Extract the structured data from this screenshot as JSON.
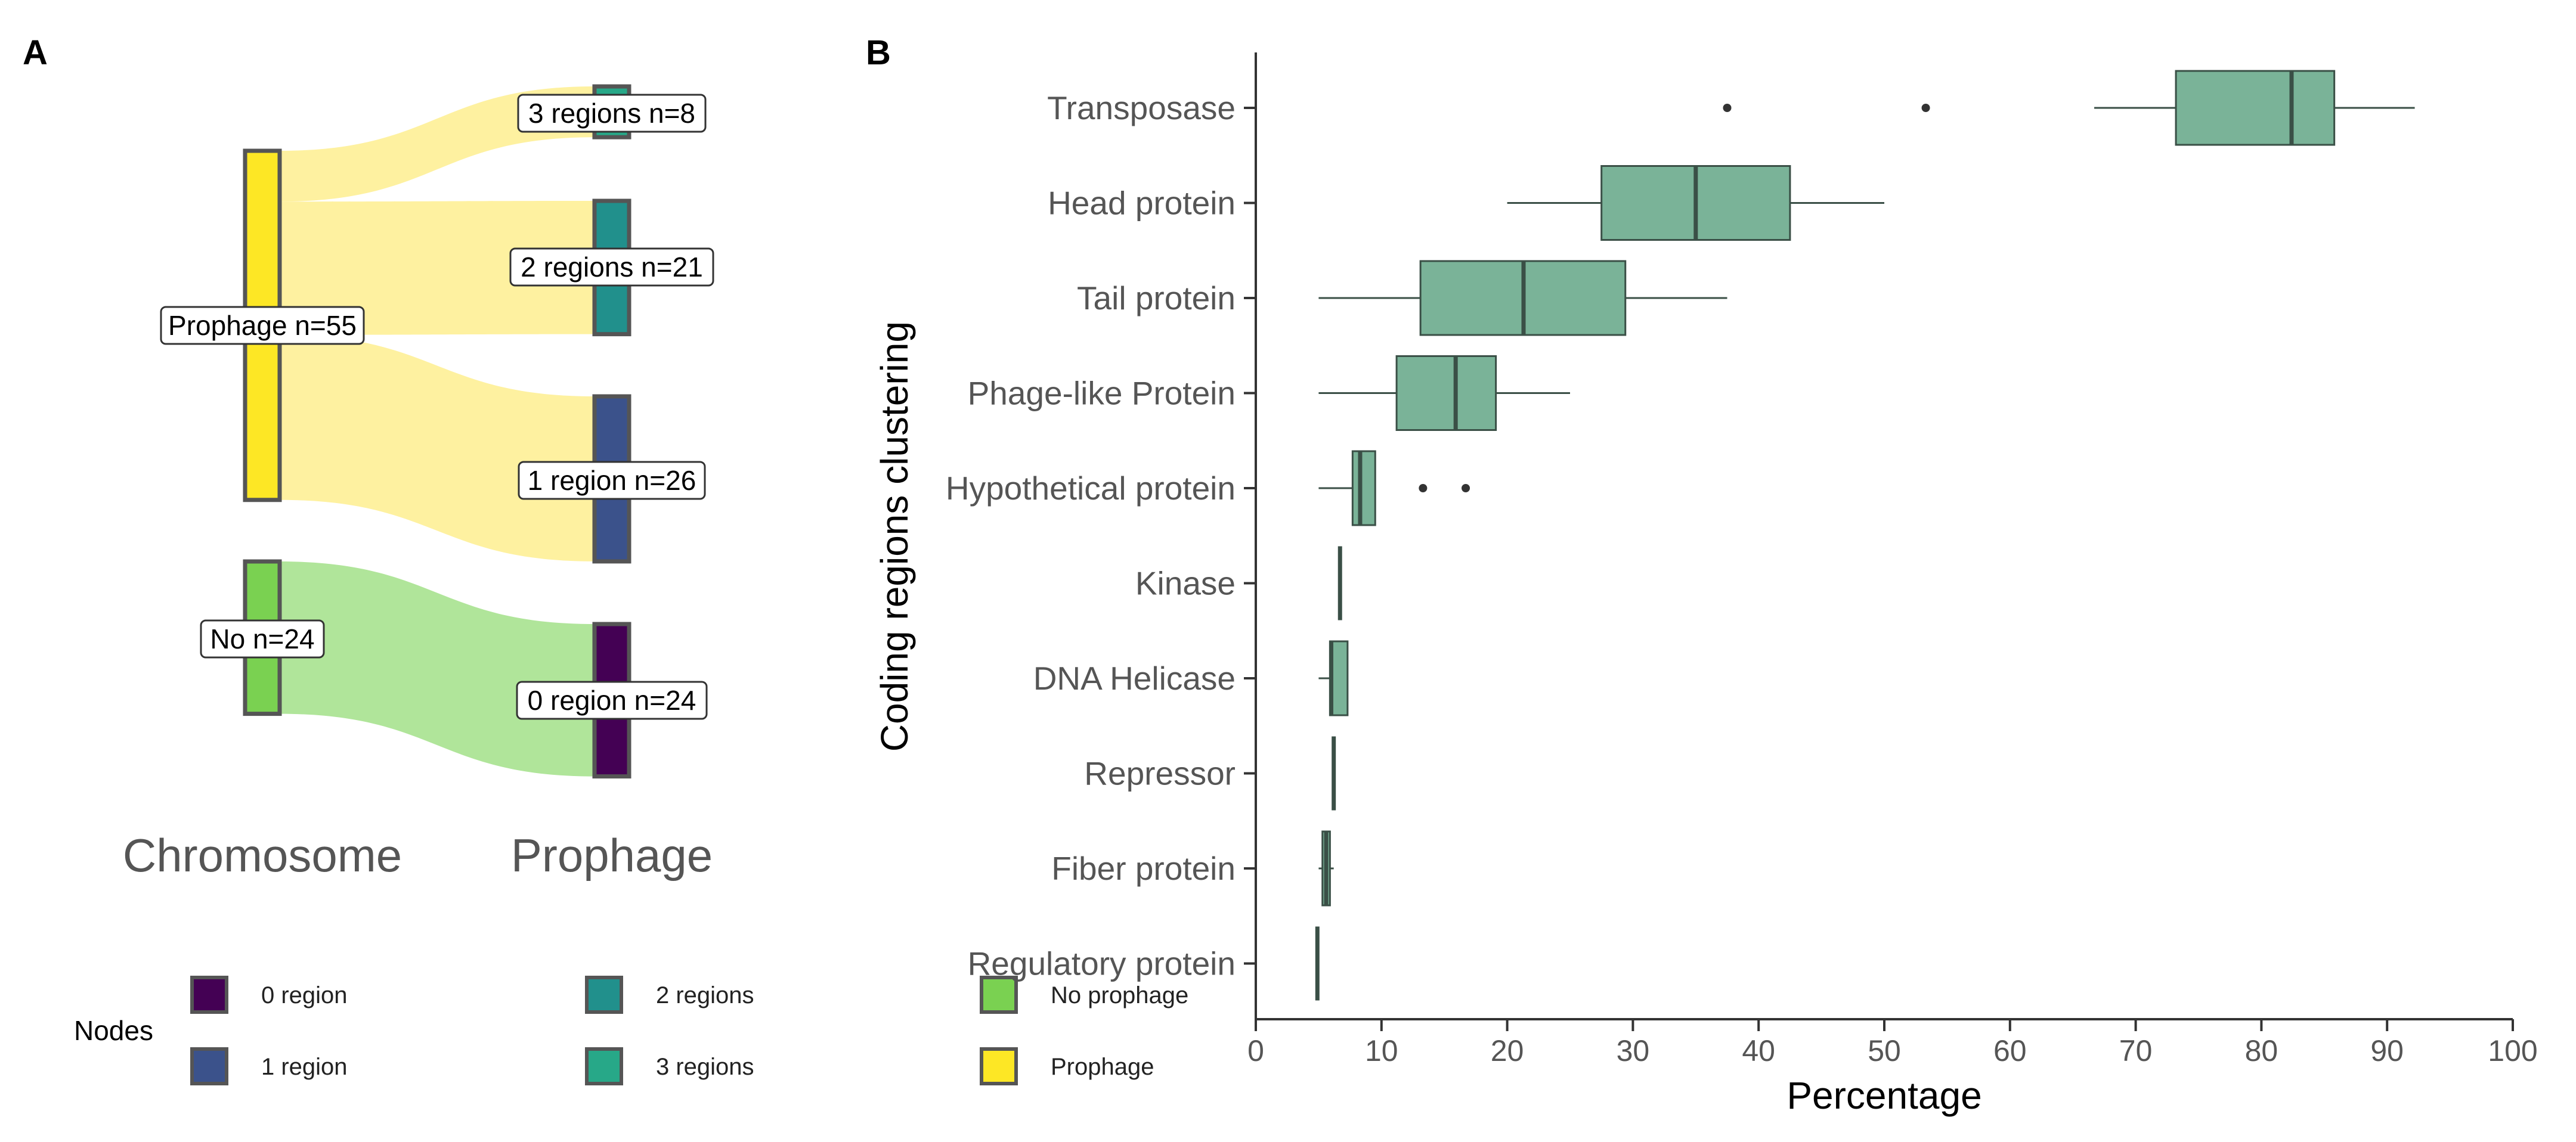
{
  "panels": {
    "a_letter": "A",
    "b_letter": "B"
  },
  "colors": {
    "0 region": "#440154",
    "1 region": "#3b528b",
    "2 regions": "#21908c",
    "3 regions": "#27a888",
    "No prophage": "#7ad151",
    "Prophage": "#fde725",
    "flow_prophage": "#fef1a0",
    "flow_no": "#b0e59a",
    "box_fill": "#7ab398",
    "box_stroke": "#3a4f46",
    "node_stroke": "#555555"
  },
  "chart_data": [
    {
      "type": "sankey",
      "columns": [
        "Chromosome",
        "Prophage"
      ],
      "nodes": [
        {
          "id": "prophage",
          "column": 0,
          "label": "Prophage n=55",
          "value": 55,
          "color_key": "Prophage"
        },
        {
          "id": "no",
          "column": 0,
          "label": "No n=24",
          "value": 24,
          "color_key": "No prophage"
        },
        {
          "id": "r3",
          "column": 1,
          "label": "3 regions n=8",
          "value": 8,
          "color_key": "3 regions"
        },
        {
          "id": "r2",
          "column": 1,
          "label": "2 regions n=21",
          "value": 21,
          "color_key": "2 regions"
        },
        {
          "id": "r1",
          "column": 1,
          "label": "1 region n=26",
          "value": 26,
          "color_key": "1 region"
        },
        {
          "id": "r0",
          "column": 1,
          "label": "0 region n=24",
          "value": 24,
          "color_key": "0 region"
        }
      ],
      "links": [
        {
          "source": "prophage",
          "target": "r3",
          "value": 8
        },
        {
          "source": "prophage",
          "target": "r2",
          "value": 21
        },
        {
          "source": "prophage",
          "target": "r1",
          "value": 26
        },
        {
          "source": "no",
          "target": "r0",
          "value": 24
        }
      ],
      "legend": {
        "title": "Nodes",
        "placement": "bottom",
        "items": [
          "0 region",
          "1 region",
          "2 regions",
          "3 regions",
          "No prophage",
          "Prophage"
        ]
      }
    },
    {
      "type": "boxplot",
      "orientation": "horizontal",
      "xlabel": "Percentage",
      "ylabel": "Coding regions clustering",
      "xlim": [
        0,
        100
      ],
      "xticks": [
        0,
        10,
        20,
        30,
        40,
        50,
        60,
        70,
        80,
        90,
        100
      ],
      "grid": false,
      "categories": [
        "Transposase",
        "Head protein",
        "Tail protein",
        "Phage-like Protein",
        "Hypothetical protein",
        "Kinase",
        "DNA Helicase",
        "Repressor",
        "Fiber protein",
        "Regulatory protein"
      ],
      "boxes": [
        {
          "category": "Transposase",
          "whisker_low": 66.7,
          "q1": 73.2,
          "median": 82.4,
          "q3": 85.8,
          "whisker_high": 92.2,
          "outliers": [
            37.5,
            53.3
          ]
        },
        {
          "category": "Head protein",
          "whisker_low": 20.0,
          "q1": 27.5,
          "median": 35.0,
          "q3": 42.5,
          "whisker_high": 50.0,
          "outliers": []
        },
        {
          "category": "Tail protein",
          "whisker_low": 5.0,
          "q1": 13.1,
          "median": 21.3,
          "q3": 29.4,
          "whisker_high": 37.5,
          "outliers": []
        },
        {
          "category": "Phage-like Protein",
          "whisker_low": 5.0,
          "q1": 11.2,
          "median": 15.9,
          "q3": 19.1,
          "whisker_high": 25.0,
          "outliers": []
        },
        {
          "category": "Hypothetical protein",
          "whisker_low": 5.0,
          "q1": 7.7,
          "median": 8.3,
          "q3": 9.5,
          "whisker_high": 9.5,
          "outliers": [
            13.3,
            16.7
          ]
        },
        {
          "category": "Kinase",
          "whisker_low": 6.7,
          "q1": 6.7,
          "median": 6.7,
          "q3": 6.7,
          "whisker_high": 6.7,
          "outliers": []
        },
        {
          "category": "DNA Helicase",
          "whisker_low": 5.0,
          "q1": 5.9,
          "median": 6.0,
          "q3": 7.3,
          "whisker_high": 7.3,
          "outliers": []
        },
        {
          "category": "Repressor",
          "whisker_low": 6.2,
          "q1": 6.2,
          "median": 6.2,
          "q3": 6.2,
          "whisker_high": 6.2,
          "outliers": []
        },
        {
          "category": "Fiber protein",
          "whisker_low": 5.0,
          "q1": 5.3,
          "median": 5.6,
          "q3": 5.9,
          "whisker_high": 6.2,
          "outliers": []
        },
        {
          "category": "Regulatory protein",
          "whisker_low": 4.9,
          "q1": 4.9,
          "median": 4.9,
          "q3": 4.9,
          "whisker_high": 4.9,
          "outliers": []
        }
      ]
    }
  ]
}
